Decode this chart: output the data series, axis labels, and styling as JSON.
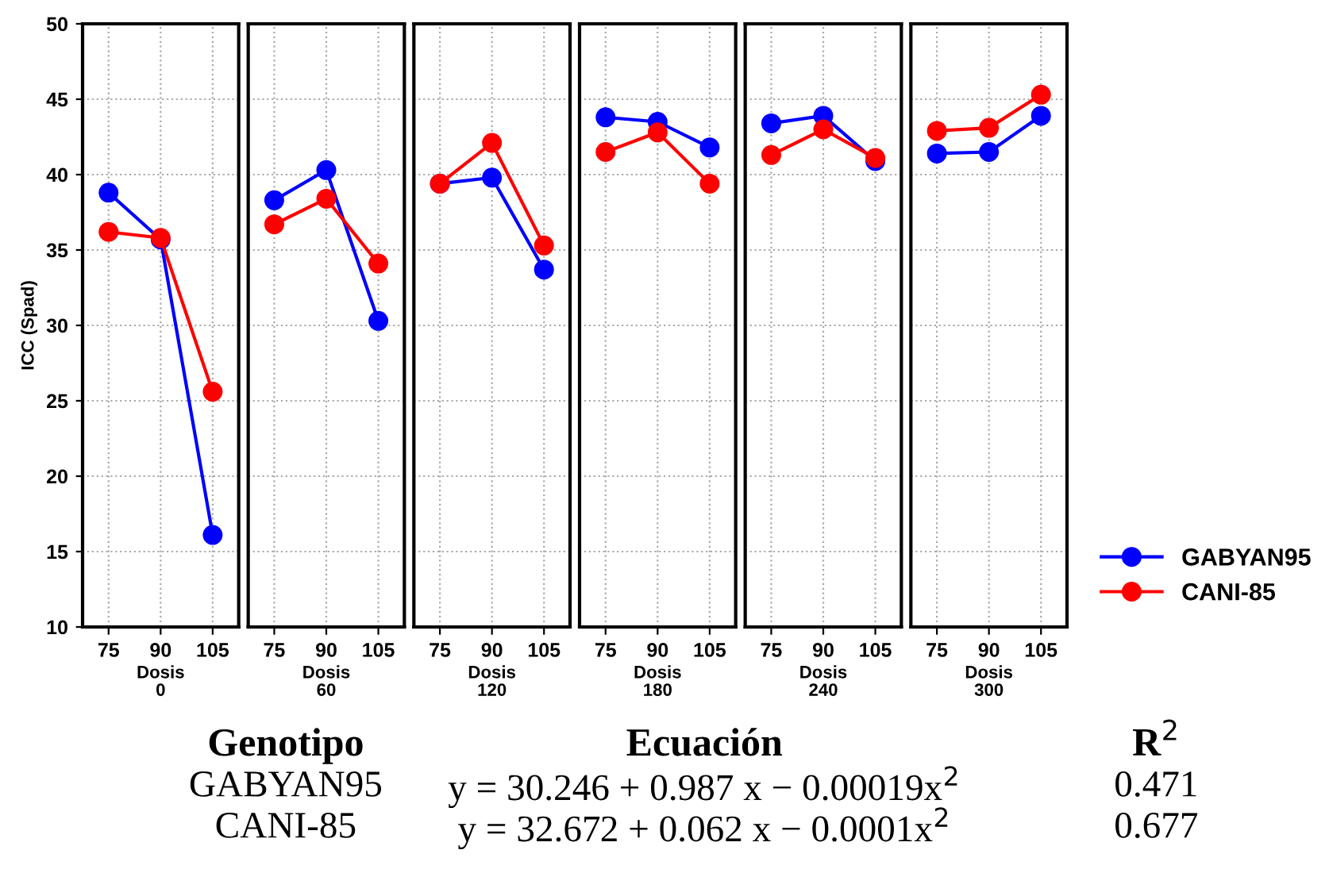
{
  "chart_data": [
    {
      "type": "line",
      "categories": [
        "75",
        "90",
        "105"
      ],
      "xlabel": "Dosis\n0",
      "ylabel": "ICC (Spad)",
      "ylim": [
        10,
        50
      ],
      "yticks": [
        10,
        15,
        20,
        25,
        30,
        35,
        40,
        45,
        50
      ],
      "grid": true,
      "marker": "circle",
      "series": [
        {
          "color": "#0000ff",
          "values": [
            38.8,
            35.7,
            16.1
          ]
        },
        {
          "color": "#ff0000",
          "values": [
            36.2,
            35.8,
            25.6
          ]
        }
      ],
      "annotations": [
        "Genotipo",
        "Ecuación",
        "R$^{2}$",
        "GABYAN95",
        "y = 30.246 + 0.987 x − 0.00019x$^{2}$",
        "0.471",
        "CANI-85",
        "y = 32.672 + 0.062 x − 0.0001x$^{2}$",
        "0.677"
      ]
    },
    {
      "type": "line",
      "categories": [
        "75",
        "90",
        "105"
      ],
      "xlabel": "Dosis\n60",
      "ylim": [
        10,
        50
      ],
      "yticks": [
        10,
        15,
        20,
        25,
        30,
        35,
        40,
        45,
        50
      ],
      "grid": true,
      "marker": "circle",
      "tick_labels": "x",
      "series": [
        {
          "color": "#0000ff",
          "values": [
            38.3,
            40.3,
            30.3
          ]
        },
        {
          "color": "#ff0000",
          "values": [
            36.7,
            38.4,
            34.1
          ]
        }
      ]
    },
    {
      "type": "line",
      "categories": [
        "75",
        "90",
        "105"
      ],
      "xlabel": "Dosis\n120",
      "ylim": [
        10,
        50
      ],
      "yticks": [
        10,
        15,
        20,
        25,
        30,
        35,
        40,
        45,
        50
      ],
      "grid": true,
      "marker": "circle",
      "tick_labels": "x",
      "series": [
        {
          "color": "#0000ff",
          "values": [
            39.4,
            39.8,
            33.7
          ]
        },
        {
          "color": "#ff0000",
          "values": [
            39.4,
            42.1,
            35.3
          ]
        }
      ]
    },
    {
      "type": "line",
      "categories": [
        "75",
        "90",
        "105"
      ],
      "xlabel": "Dosis\n180",
      "ylim": [
        10,
        50
      ],
      "yticks": [
        10,
        15,
        20,
        25,
        30,
        35,
        40,
        45,
        50
      ],
      "grid": true,
      "marker": "circle",
      "tick_labels": "x",
      "series": [
        {
          "color": "#0000ff",
          "values": [
            43.8,
            43.5,
            41.8
          ]
        },
        {
          "color": "#ff0000",
          "values": [
            41.5,
            42.8,
            39.4
          ]
        }
      ]
    },
    {
      "type": "line",
      "categories": [
        "75",
        "90",
        "105"
      ],
      "xlabel": "Dosis\n240",
      "ylim": [
        10,
        50
      ],
      "yticks": [
        10,
        15,
        20,
        25,
        30,
        35,
        40,
        45,
        50
      ],
      "grid": true,
      "marker": "circle",
      "tick_labels": "x",
      "series": [
        {
          "color": "#0000ff",
          "values": [
            43.4,
            43.9,
            40.9
          ]
        },
        {
          "color": "#ff0000",
          "values": [
            41.3,
            43.0,
            41.1
          ]
        }
      ]
    },
    {
      "type": "line",
      "categories": [
        "75",
        "90",
        "105"
      ],
      "xlabel": "Dosis\n300",
      "ylim": [
        10,
        50
      ],
      "yticks": [
        10,
        15,
        20,
        25,
        30,
        35,
        40,
        45,
        50
      ],
      "grid": true,
      "marker": "circle",
      "tick_labels": "x",
      "legend": "right",
      "series": [
        {
          "name": "GABYAN95",
          "color": "#0000ff",
          "values": [
            41.4,
            41.5,
            43.9
          ]
        },
        {
          "name": "CANI-85",
          "color": "#ff0000",
          "values": [
            42.9,
            43.1,
            45.3
          ]
        }
      ]
    }
  ]
}
